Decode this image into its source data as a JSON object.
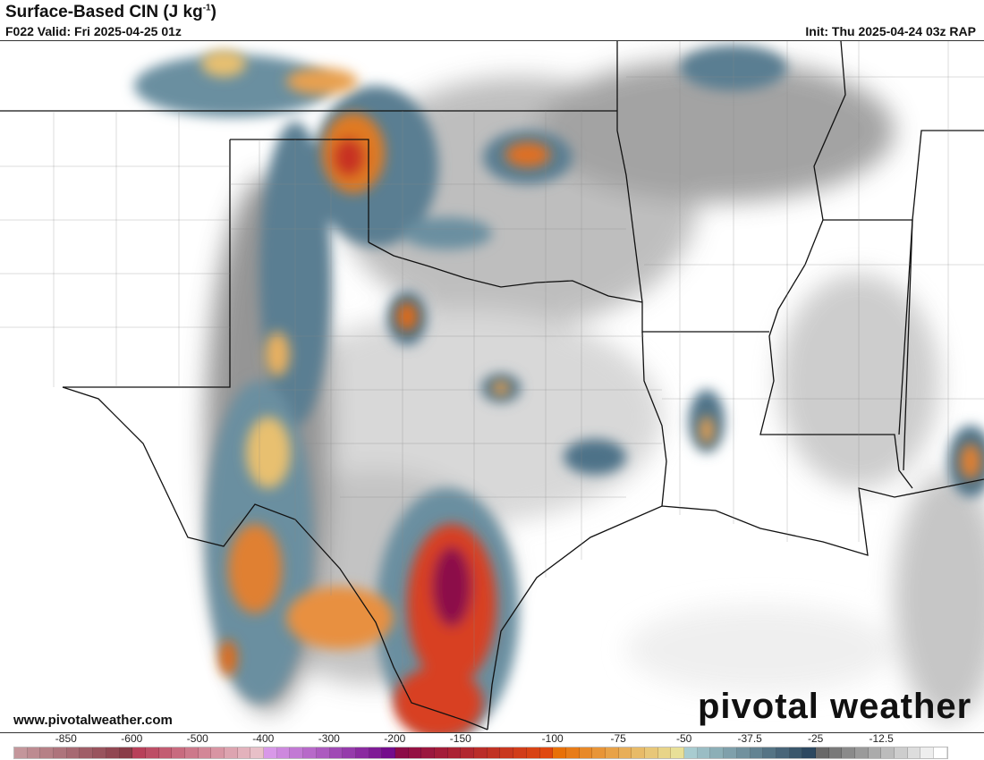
{
  "header": {
    "title": "Surface-Based CIN (J kg",
    "title_sup": "-1",
    "title_end": ")",
    "valid": "F022 Valid: Fri 2025-04-25 01z",
    "init": "Init: Thu 2025-04-24 03z RAP"
  },
  "footer": {
    "website": "www.pivotalweather.com",
    "logo_text": "pivotal weather"
  },
  "colorbar": {
    "labels": [
      "-850",
      "-600",
      "-500",
      "-400",
      "-300",
      "-200",
      "-150",
      "-100",
      "-75",
      "-50",
      "-37.5",
      "-25",
      "-12.5"
    ],
    "groups": [
      {
        "count": 9,
        "from": "#c4969b",
        "to": "#8a3c48"
      },
      {
        "count": 10,
        "from": "#b8405a",
        "to": "#e8c0c8"
      },
      {
        "count": 10,
        "from": "#d898e8",
        "to": "#740c8c"
      },
      {
        "count": 12,
        "from": "#8c0c48",
        "to": "#e04810"
      },
      {
        "count": 10,
        "from": "#e87008",
        "to": "#e8e098"
      },
      {
        "count": 10,
        "from": "#a8ccd0",
        "to": "#2c4860"
      },
      {
        "count": 10,
        "from": "#686868",
        "to": "#ffffff"
      }
    ]
  }
}
